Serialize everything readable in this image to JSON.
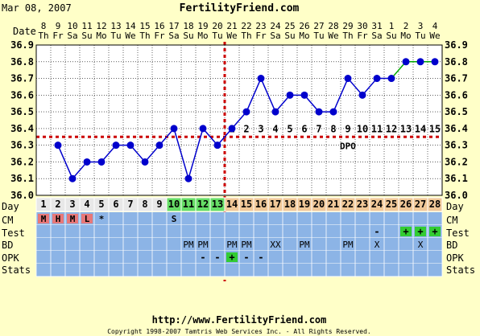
{
  "header": {
    "date": "Mar 08, 2007",
    "site": "FertilityFriend.com"
  },
  "footer": {
    "url": "http://www.FertilityFriend.com",
    "copyright": "Copyright 1998-2007 Tamtris Web Services Inc. - All Rights Reserved."
  },
  "row_labels": {
    "date": "Date",
    "day": "Day",
    "cm": "CM",
    "test": "Test",
    "bd": "BD",
    "opk": "OPK",
    "stats": "Stats"
  },
  "dpo_label": "DPO",
  "colors": {
    "background": "#ffffc8",
    "plot_bg": "#ffffff",
    "line": "#0000cc",
    "post_line": "#00aa00",
    "coverline": "#cc0000",
    "row_blue": "#8cb4e6",
    "day_gray": "#e8e8e8",
    "day_green": "#66dd66",
    "day_orange": "#f0c898",
    "cm_menses": "#e87878",
    "cm_text": "#b00000",
    "positive_box": "#33cc33",
    "header_red": "#cc0000",
    "header_blue": "#0000cc"
  },
  "chart_data": {
    "type": "line",
    "ylim": [
      36.0,
      36.9
    ],
    "yticks": [
      "36.0",
      "36.1",
      "36.2",
      "36.3",
      "36.4",
      "36.5",
      "36.6",
      "36.7",
      "36.8",
      "36.9"
    ],
    "date_numbers": [
      "8",
      "9",
      "10",
      "11",
      "12",
      "13",
      "14",
      "15",
      "16",
      "17",
      "18",
      "19",
      "20",
      "21",
      "22",
      "23",
      "24",
      "25",
      "26",
      "27",
      "28",
      "29",
      "30",
      "31",
      "1",
      "2",
      "3",
      "4"
    ],
    "weekdays": [
      "Th",
      "Fr",
      "Sa",
      "Su",
      "Mo",
      "Tu",
      "We",
      "Th",
      "Fr",
      "Sa",
      "Su",
      "Mo",
      "Tu",
      "We",
      "Th",
      "Fr",
      "Sa",
      "Su",
      "Mo",
      "Tu",
      "We",
      "Th",
      "Fr",
      "Sa",
      "Su",
      "Mo",
      "Tu",
      "We"
    ],
    "cycle_days": [
      1,
      2,
      3,
      4,
      5,
      6,
      7,
      8,
      9,
      10,
      11,
      12,
      13,
      14,
      15,
      16,
      17,
      18,
      19,
      20,
      21,
      22,
      23,
      24,
      25,
      26,
      27,
      28
    ],
    "temperatures": [
      null,
      36.3,
      36.1,
      36.2,
      36.2,
      36.3,
      36.3,
      36.2,
      36.3,
      36.4,
      36.1,
      36.4,
      36.3,
      36.4,
      36.5,
      36.7,
      36.5,
      36.6,
      36.6,
      36.5,
      36.5,
      36.7,
      36.6,
      36.7,
      36.7,
      36.8,
      36.8,
      36.8
    ],
    "coverline": 36.35,
    "ovulation_day": 13,
    "dpo": [
      "",
      "",
      "",
      "",
      "",
      "",
      "",
      "",
      "",
      "",
      "",
      "",
      "",
      "1",
      "2",
      "3",
      "4",
      "5",
      "6",
      "7",
      "8",
      "9",
      "10",
      "11",
      "12",
      "13",
      "14",
      "15"
    ],
    "cm": [
      "M",
      "H",
      "M",
      "L",
      "*",
      "",
      "",
      "",
      "",
      "S",
      "",
      "",
      "",
      "",
      "",
      "",
      "",
      "",
      "",
      "",
      "",
      "",
      "",
      "",
      "",
      "",
      "",
      ""
    ],
    "test": [
      "",
      "",
      "",
      "",
      "",
      "",
      "",
      "",
      "",
      "",
      "",
      "",
      "",
      "",
      "",
      "",
      "",
      "",
      "",
      "",
      "",
      "",
      "",
      "-",
      "",
      "+",
      "+",
      "+"
    ],
    "bd": [
      "",
      "",
      "",
      "",
      "",
      "",
      "",
      "",
      "",
      "",
      "PM",
      "PM",
      "",
      "PM",
      "PM",
      "",
      "XX",
      "",
      "PM",
      "",
      "",
      "PM",
      "",
      "X",
      "",
      "",
      "X",
      ""
    ],
    "opk": [
      "",
      "",
      "",
      "",
      "",
      "",
      "",
      "",
      "",
      "",
      "",
      "-",
      "-",
      "+",
      "-",
      "-",
      "",
      "",
      "",
      "",
      "",
      "",
      "",
      "",
      "",
      "",
      "",
      ""
    ],
    "day_band_colors": [
      "gray",
      "gray",
      "gray",
      "gray",
      "gray",
      "gray",
      "gray",
      "gray",
      "gray",
      "green",
      "green",
      "green",
      "green",
      "orange",
      "orange",
      "orange",
      "orange",
      "orange",
      "orange",
      "orange",
      "orange",
      "orange",
      "orange",
      "orange",
      "orange",
      "orange",
      "orange",
      "orange"
    ],
    "grid": true
  }
}
